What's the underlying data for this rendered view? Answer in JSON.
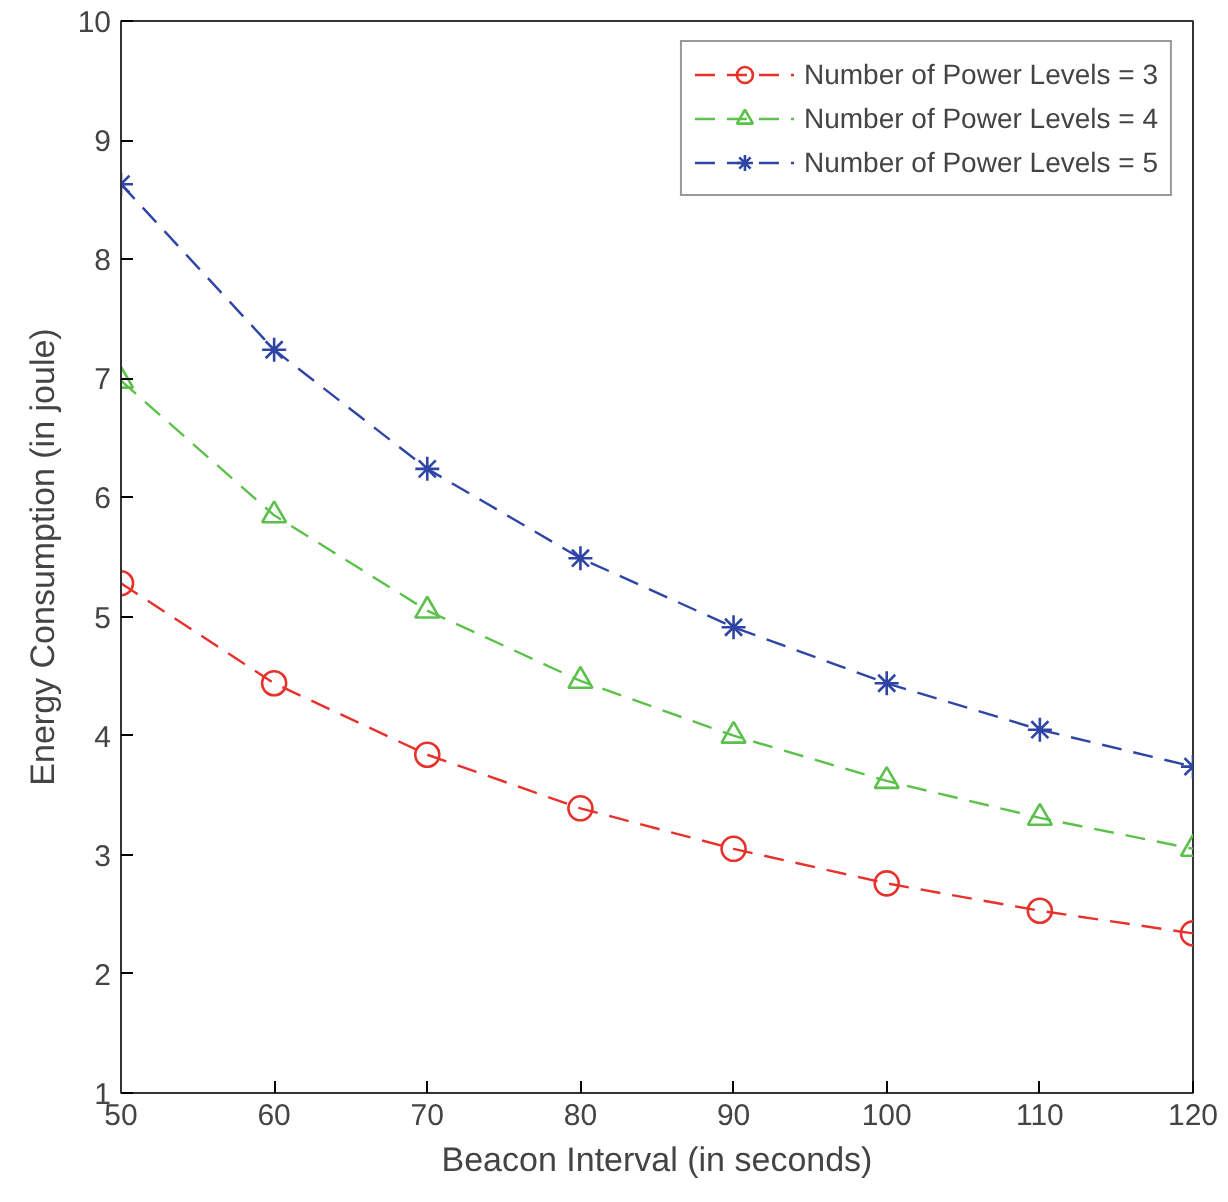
{
  "chart_data": {
    "type": "line",
    "xlabel": "Beacon Interval (in seconds)",
    "ylabel": "Energy Consumption (in joule)",
    "x": [
      50,
      60,
      70,
      80,
      90,
      100,
      110,
      120
    ],
    "xlim": [
      50,
      120
    ],
    "xticks": [
      50,
      60,
      70,
      80,
      90,
      100,
      110,
      120
    ],
    "ylim": [
      1,
      10
    ],
    "yticks": [
      1,
      2,
      3,
      4,
      5,
      6,
      7,
      8,
      9,
      10
    ],
    "grid": false,
    "legend": "top right",
    "line_style": "dashed",
    "series": [
      {
        "name": "Number of Power Levels = 3",
        "color": "#e8312a",
        "marker": "circle",
        "values": [
          5.28,
          4.44,
          3.84,
          3.39,
          3.05,
          2.76,
          2.53,
          2.34
        ]
      },
      {
        "name": "Number of Power Levels = 4",
        "color": "#5cc14a",
        "marker": "triangle",
        "values": [
          6.98,
          5.85,
          5.05,
          4.46,
          4.0,
          3.62,
          3.31,
          3.05
        ]
      },
      {
        "name": "Number of Power Levels = 5",
        "color": "#2e45a6",
        "marker": "cross",
        "values": [
          8.63,
          7.24,
          6.24,
          5.49,
          4.91,
          4.44,
          4.05,
          3.74
        ]
      }
    ]
  }
}
